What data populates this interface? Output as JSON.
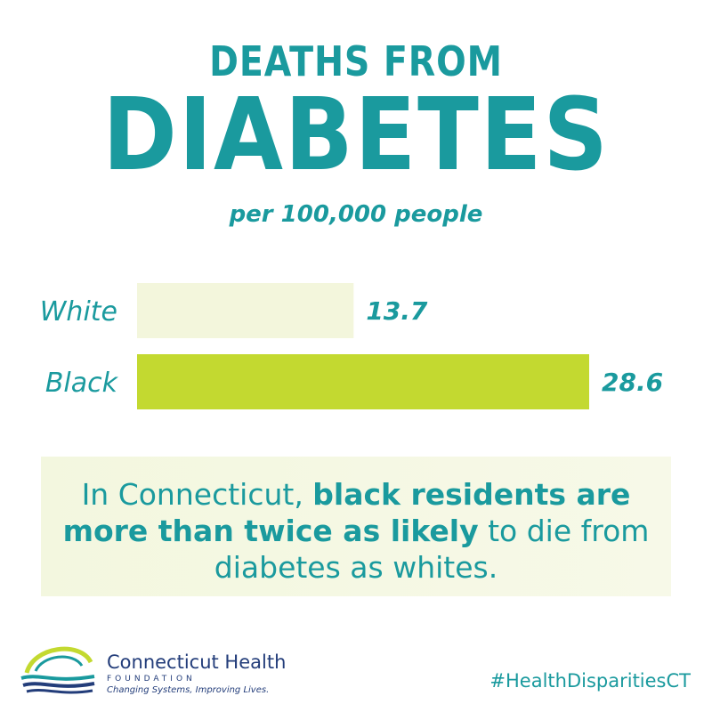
{
  "header": {
    "title_line1": "DEATHS FROM",
    "title_line2": "DIABETES",
    "subtitle": "per 100,000 people"
  },
  "chart_data": {
    "type": "bar",
    "orientation": "horizontal",
    "categories": [
      "White",
      "Black"
    ],
    "values": [
      13.7,
      28.6
    ],
    "value_labels": [
      "13.7",
      "28.6"
    ],
    "colors": [
      "#f3f6dc",
      "#c3d930"
    ],
    "title": "DEATHS FROM DIABETES",
    "subtitle": "per 100,000 people",
    "xlim": [
      0,
      28.6
    ],
    "grid": false
  },
  "callout": {
    "part1": "In Connecticut, ",
    "bold": "black residents are more than twice as likely",
    "part2": " to die from diabetes as whites."
  },
  "footer": {
    "org_name": "Connecticut Health",
    "org_sub": "FOUNDATION",
    "tagline": "Changing Systems, Improving Lives.",
    "hashtag": "#HealthDisparitiesCT"
  },
  "colors": {
    "teal": "#1a9a9e",
    "navy": "#233d7a",
    "lime": "#c3d930",
    "pale": "#f3f6dc"
  },
  "icons": {
    "logo": "ct-health-foundation-logo"
  }
}
